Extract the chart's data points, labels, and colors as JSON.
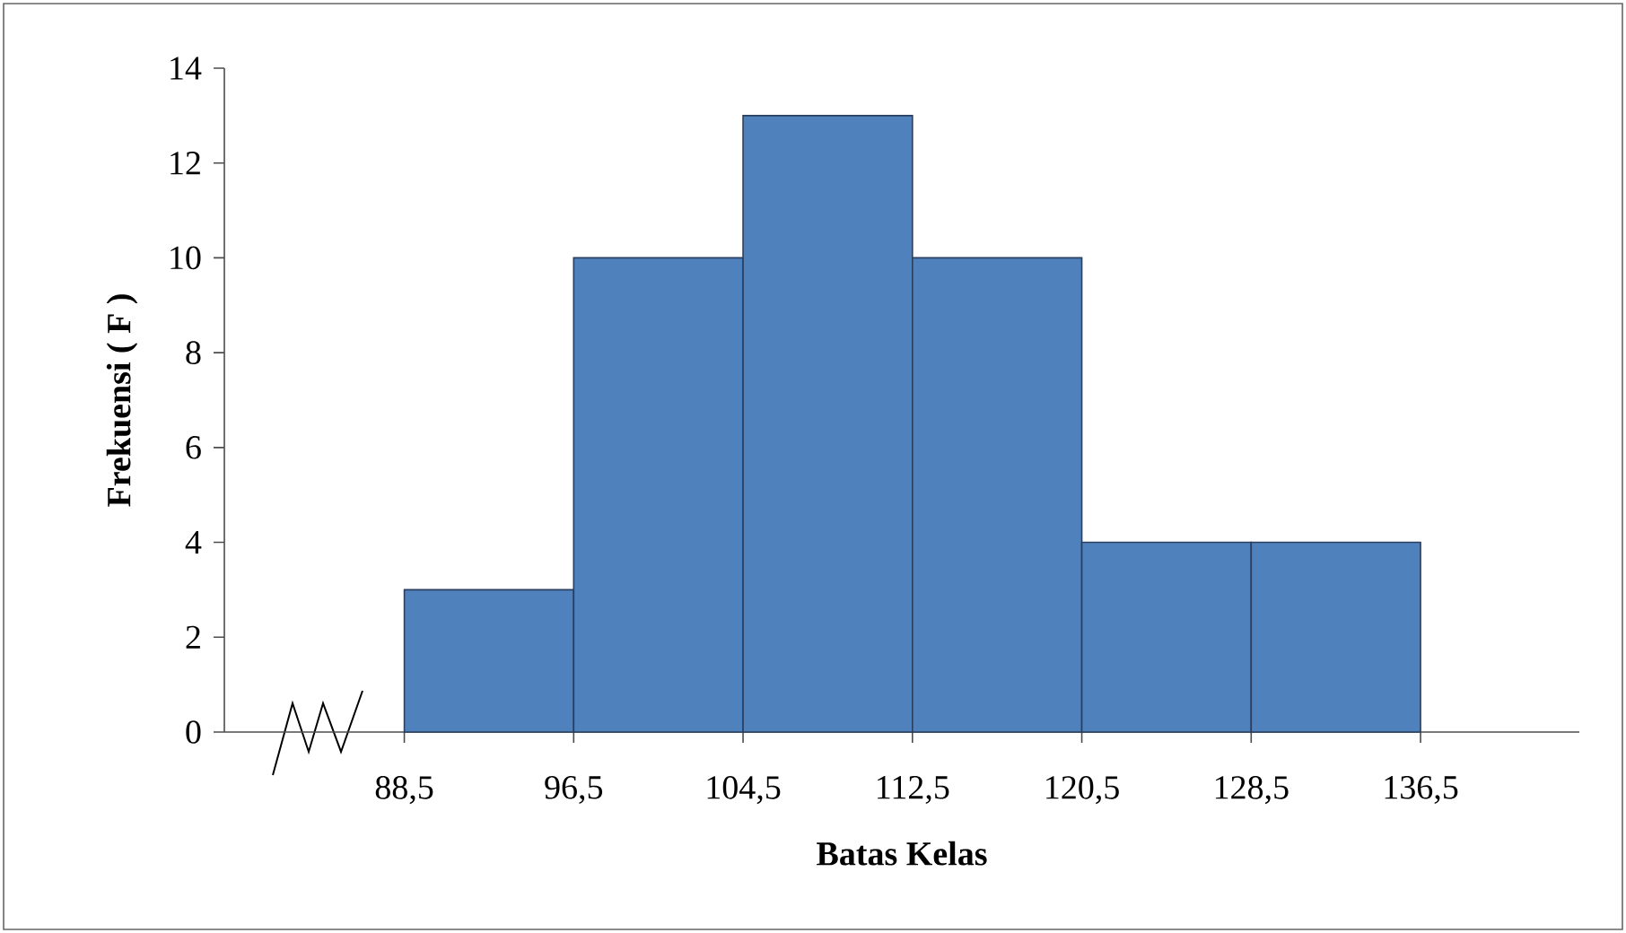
{
  "chart_data": {
    "type": "histogram",
    "xlabel": "Batas Kelas",
    "ylabel": "Frekuensi ( F )",
    "bins": [
      88.5,
      96.5,
      104.5,
      112.5,
      120.5,
      128.5,
      136.5
    ],
    "values": [
      3,
      10,
      13,
      10,
      4,
      4
    ],
    "color": "#4f81bd",
    "xlim": [
      80,
      144
    ],
    "ylim": [
      0,
      14
    ],
    "xticks": [
      {
        "value": 88.5,
        "label": "88,5"
      },
      {
        "value": 96.5,
        "label": "96,5"
      },
      {
        "value": 104.5,
        "label": "104,5"
      },
      {
        "value": 112.5,
        "label": "112,5"
      },
      {
        "value": 120.5,
        "label": "120,5"
      },
      {
        "value": 128.5,
        "label": "128,5"
      },
      {
        "value": 136.5,
        "label": "136,5"
      }
    ],
    "yticks": [
      0,
      2,
      4,
      6,
      8,
      10,
      12,
      14
    ],
    "grid": false
  }
}
